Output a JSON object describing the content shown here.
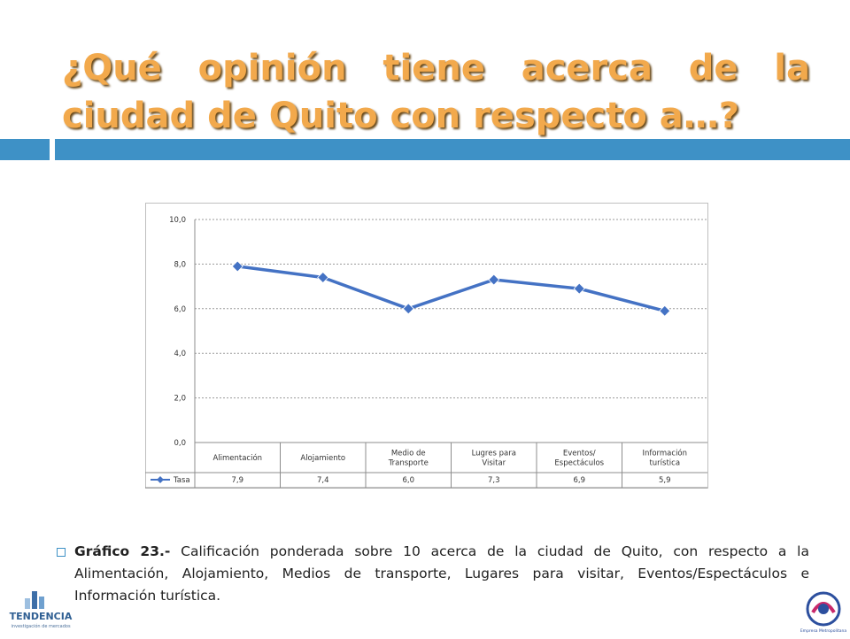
{
  "slide": {
    "title": "¿Qué opinión tiene acerca de la ciudad de Quito con respecto a…?",
    "caption_label": "Gráfico 23.-",
    "caption_text": " Calificación ponderada sobre 10 acerca de la ciudad de Quito, con respecto a la Alimentación, Alojamiento, Medios de transporte, Lugares para visitar, Eventos/Espectáculos e Información turística."
  },
  "colors": {
    "title": "#f2a94c",
    "accent_bar": "#3e91c6",
    "series_line": "#4472c4"
  },
  "logos": {
    "left_name": "TENDENCIA",
    "left_tagline": "investigación de mercados",
    "right_text": "Empresa Metropolitana Quito Turismo"
  },
  "chart_data": {
    "type": "line",
    "categories": [
      [
        "Alimentación"
      ],
      [
        "Alojamiento"
      ],
      [
        "Medio de",
        "Transporte"
      ],
      [
        "Lugres para",
        "Visitar"
      ],
      [
        "Eventos/",
        "Espectáculos"
      ],
      [
        "Información",
        "turística"
      ]
    ],
    "series": [
      {
        "name": "Tasa",
        "values": [
          7.9,
          7.4,
          6.0,
          7.3,
          6.9,
          5.9
        ],
        "labels": [
          "7,9",
          "7,4",
          "6,0",
          "7,3",
          "6,9",
          "5,9"
        ]
      }
    ],
    "ylim": [
      0,
      10
    ],
    "yticks": [
      "0,0",
      "2,0",
      "4,0",
      "6,0",
      "8,0",
      "10,0"
    ],
    "grid": "horizontal dashed",
    "legend": "data table"
  }
}
